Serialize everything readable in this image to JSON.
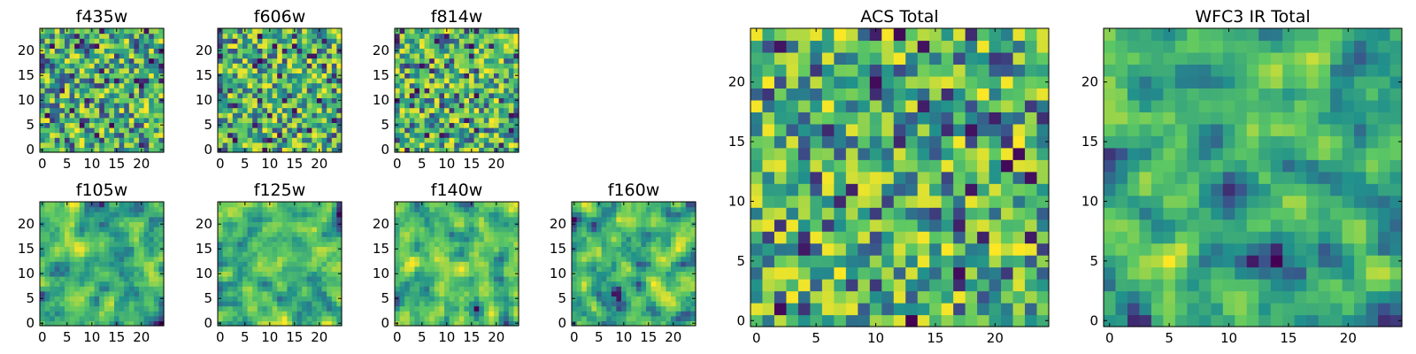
{
  "figure": {
    "colormap": [
      "#440154",
      "#3b528b",
      "#21918c",
      "#5ec962",
      "#fde725"
    ]
  },
  "chart_data": [
    {
      "type": "heatmap",
      "title": "f435w",
      "grid_size": 25,
      "kernel": "noise",
      "seed": 11,
      "xticks": [
        "0",
        "5",
        "10",
        "15",
        "20"
      ],
      "yticks": [
        "0",
        "5",
        "10",
        "15",
        "20"
      ],
      "xlim": [
        0,
        25
      ],
      "ylim": [
        0,
        25
      ]
    },
    {
      "type": "heatmap",
      "title": "f606w",
      "grid_size": 25,
      "kernel": "noise",
      "seed": 23,
      "xticks": [
        "0",
        "5",
        "10",
        "15",
        "20"
      ],
      "yticks": [
        "0",
        "5",
        "10",
        "15",
        "20"
      ],
      "xlim": [
        0,
        25
      ],
      "ylim": [
        0,
        25
      ]
    },
    {
      "type": "heatmap",
      "title": "f814w",
      "grid_size": 25,
      "kernel": "noise",
      "seed": 37,
      "xticks": [
        "0",
        "5",
        "10",
        "15",
        "20"
      ],
      "yticks": [
        "0",
        "5",
        "10",
        "15",
        "20"
      ],
      "xlim": [
        0,
        25
      ],
      "ylim": [
        0,
        25
      ]
    },
    {
      "type": "heatmap",
      "title": "f105w",
      "grid_size": 25,
      "kernel": "smooth",
      "seed": 41,
      "xticks": [
        "0",
        "5",
        "10",
        "15",
        "20"
      ],
      "yticks": [
        "0",
        "5",
        "10",
        "15",
        "20"
      ],
      "xlim": [
        0,
        25
      ],
      "ylim": [
        0,
        25
      ]
    },
    {
      "type": "heatmap",
      "title": "f125w",
      "grid_size": 25,
      "kernel": "smooth",
      "seed": 53,
      "xticks": [
        "0",
        "5",
        "10",
        "15",
        "20"
      ],
      "yticks": [
        "0",
        "5",
        "10",
        "15",
        "20"
      ],
      "xlim": [
        0,
        25
      ],
      "ylim": [
        0,
        25
      ]
    },
    {
      "type": "heatmap",
      "title": "f140w",
      "grid_size": 25,
      "kernel": "smooth",
      "seed": 67,
      "xticks": [
        "0",
        "5",
        "10",
        "15",
        "20"
      ],
      "yticks": [
        "0",
        "5",
        "10",
        "15",
        "20"
      ],
      "xlim": [
        0,
        25
      ],
      "ylim": [
        0,
        25
      ]
    },
    {
      "type": "heatmap",
      "title": "f160w",
      "grid_size": 25,
      "kernel": "smooth",
      "seed": 79,
      "xticks": [
        "0",
        "5",
        "10",
        "15",
        "20"
      ],
      "yticks": [
        "0",
        "5",
        "10",
        "15",
        "20"
      ],
      "xlim": [
        0,
        25
      ],
      "ylim": [
        0,
        25
      ]
    },
    {
      "type": "heatmap",
      "title": "ACS Total",
      "grid_size": 25,
      "kernel": "noise",
      "seed": 97,
      "xticks": [
        "0",
        "5",
        "10",
        "15",
        "20"
      ],
      "yticks": [
        "0",
        "5",
        "10",
        "15",
        "20"
      ],
      "xlim": [
        0,
        25
      ],
      "ylim": [
        0,
        25
      ]
    },
    {
      "type": "heatmap",
      "title": "WFC3 IR Total",
      "grid_size": 25,
      "kernel": "smooth",
      "seed": 131,
      "xticks": [
        "0",
        "5",
        "10",
        "15",
        "20"
      ],
      "yticks": [
        "0",
        "5",
        "10",
        "15",
        "20"
      ],
      "xlim": [
        0,
        25
      ],
      "ylim": [
        0,
        25
      ]
    }
  ]
}
